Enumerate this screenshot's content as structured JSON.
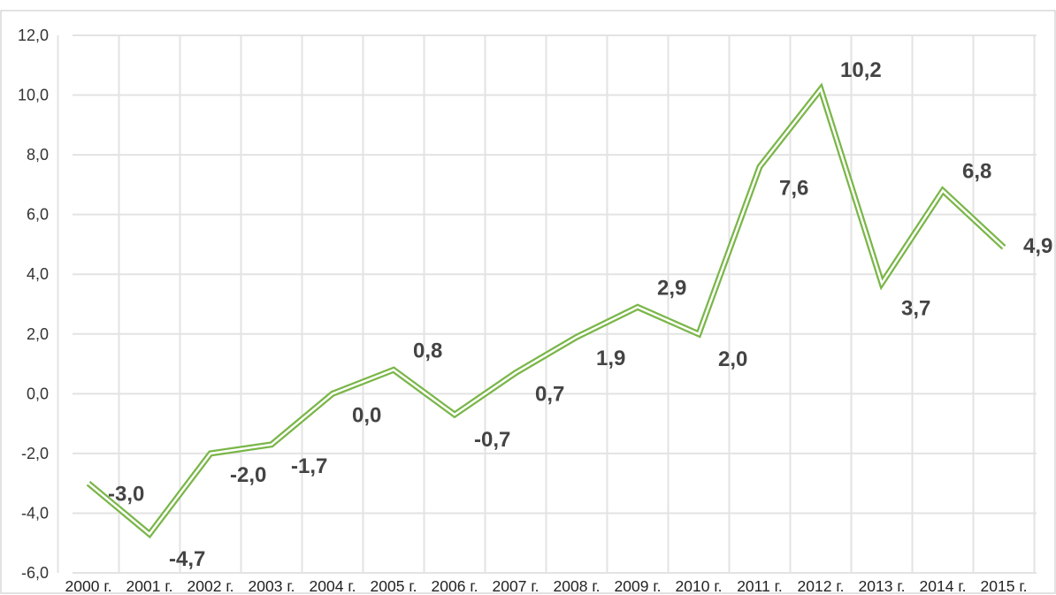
{
  "chart_data": {
    "type": "line",
    "categories": [
      "2000 г.",
      "2001 г.",
      "2002 г.",
      "2003 г.",
      "2004 г.",
      "2005 г.",
      "2006 г.",
      "2007 г.",
      "2008 г.",
      "2009 г.",
      "2010 г.",
      "2011 г.",
      "2012 г.",
      "2013 г.",
      "2014 г.",
      "2015 г."
    ],
    "values": [
      -3.0,
      -4.7,
      -2.0,
      -1.7,
      0.0,
      0.8,
      -0.7,
      0.7,
      1.9,
      2.9,
      2.0,
      7.6,
      10.2,
      3.7,
      6.8,
      4.9
    ],
    "data_labels": [
      "-3,0",
      "-4,7",
      "-2,0",
      "-1,7",
      "0,0",
      "0,8",
      "-0,7",
      "0,7",
      "1,9",
      "2,9",
      "2,0",
      "7,6",
      "10,2",
      "3,7",
      "6,8",
      "4,9"
    ],
    "yticks": [
      12,
      10,
      8,
      6,
      4,
      2,
      0,
      -2,
      -4,
      -6
    ],
    "ytick_labels": [
      "12,0",
      "10,0",
      "8,0",
      "6,0",
      "4,0",
      "2,0",
      "0,0",
      "-2,0",
      "-4,0",
      "-6,0"
    ],
    "ylim": [
      -6,
      12
    ],
    "title": "",
    "xlabel": "",
    "ylabel": "",
    "grid": "vertical and horizontal",
    "legend": "none",
    "colors": {
      "line_outer": "#7ab648",
      "line_inner": "#ffffff",
      "grid": "#e3e3e3"
    }
  }
}
